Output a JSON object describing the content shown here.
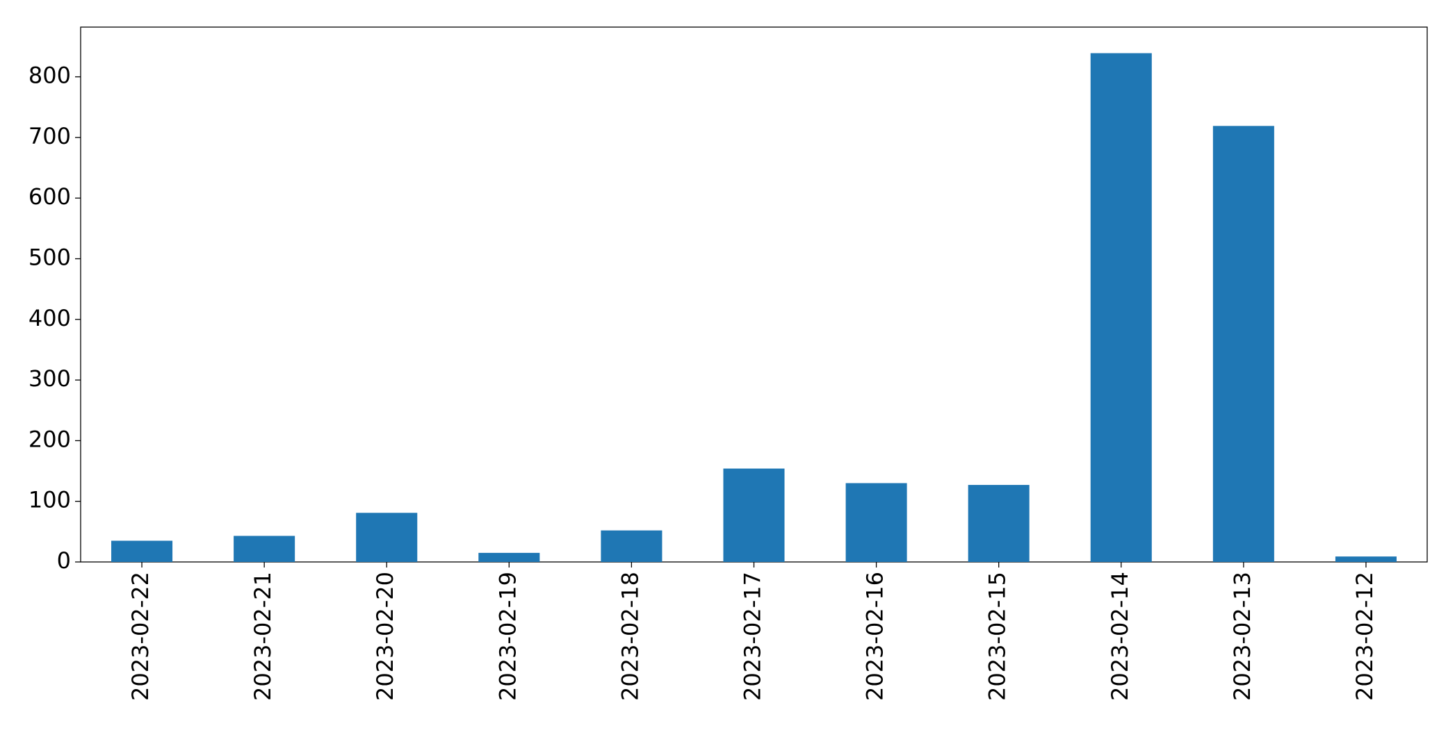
{
  "chart_data": {
    "type": "bar",
    "categories": [
      "2023-02-22",
      "2023-02-21",
      "2023-02-20",
      "2023-02-19",
      "2023-02-18",
      "2023-02-17",
      "2023-02-16",
      "2023-02-15",
      "2023-02-14",
      "2023-02-13",
      "2023-02-12"
    ],
    "values": [
      35,
      43,
      81,
      15,
      52,
      154,
      130,
      127,
      839,
      719,
      9
    ],
    "color": "#1f77b4",
    "ylim": [
      0,
      882
    ],
    "yticks": [
      0,
      100,
      200,
      300,
      400,
      500,
      600,
      700,
      800
    ],
    "grid": false
  }
}
